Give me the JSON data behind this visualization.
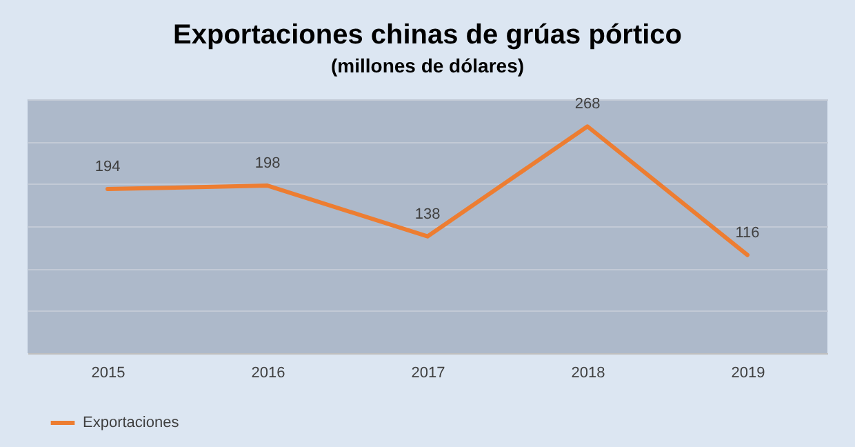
{
  "chart_data": {
    "type": "line",
    "title": "Exportaciones chinas de grúas pórtico",
    "subtitle": "(millones de dólares)",
    "categories": [
      "2015",
      "2016",
      "2017",
      "2018",
      "2019"
    ],
    "series": [
      {
        "name": "Exportaciones",
        "color": "#ed7d31",
        "values": [
          194,
          198,
          138,
          268,
          116
        ]
      }
    ],
    "ylim": [
      0,
      300
    ],
    "tick_labels": "x",
    "grid": "y",
    "data_labels": true,
    "legend": "bottom left",
    "marker": "none",
    "line_style": "solid"
  }
}
